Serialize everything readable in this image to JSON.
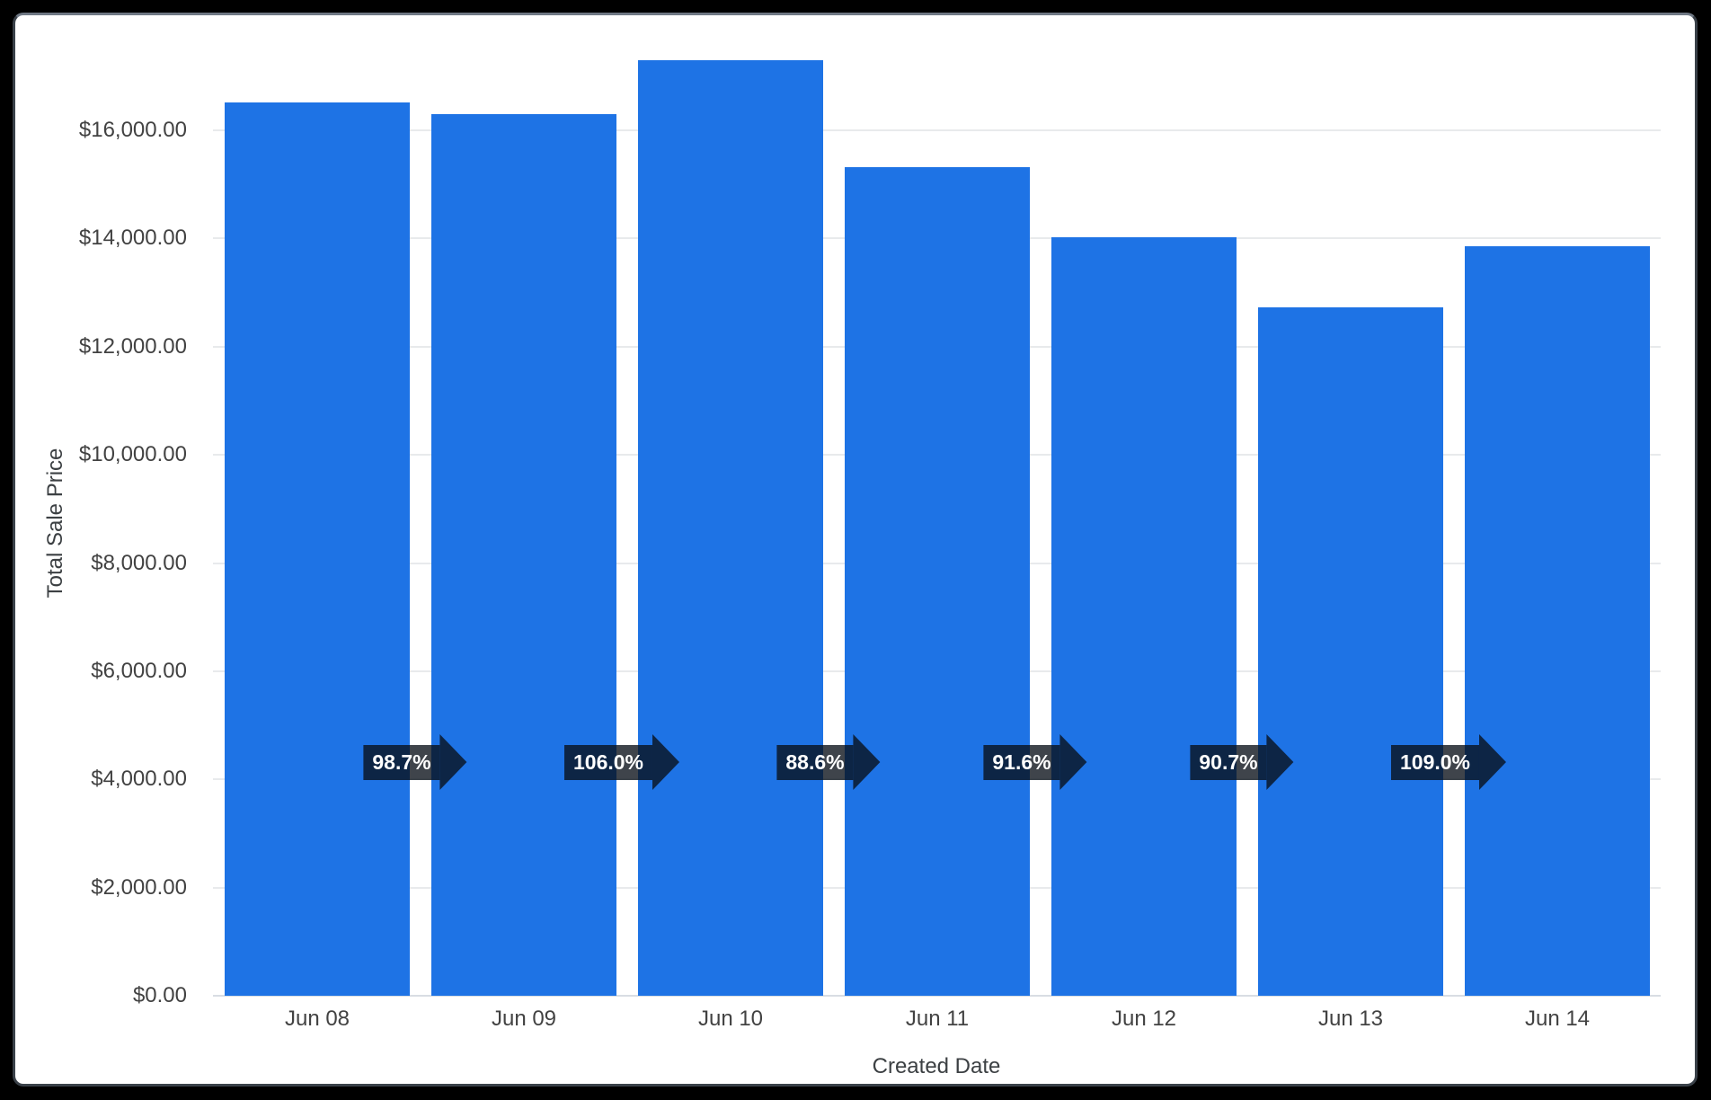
{
  "frame": {
    "background_color": "#000000",
    "panel_color": "#ffffff"
  },
  "chart_data": {
    "type": "bar",
    "title": "",
    "xlabel": "Created Date",
    "ylabel": "Total Sale Price",
    "categories": [
      "Jun 08",
      "Jun 09",
      "Jun 10",
      "Jun 11",
      "Jun 12",
      "Jun 13",
      "Jun 14"
    ],
    "values": [
      16520,
      16300,
      17290,
      15320,
      14030,
      12720,
      13860
    ],
    "ylim": [
      0,
      17400
    ],
    "grid": true,
    "legend_position": "none",
    "bar_color": "#1E73E5",
    "y_ticks": [
      {
        "value": 0,
        "label": "$0.00"
      },
      {
        "value": 2000,
        "label": "$2,000.00"
      },
      {
        "value": 4000,
        "label": "$4,000.00"
      },
      {
        "value": 6000,
        "label": "$6,000.00"
      },
      {
        "value": 8000,
        "label": "$8,000.00"
      },
      {
        "value": 10000,
        "label": "$10,000.00"
      },
      {
        "value": 12000,
        "label": "$12,000.00"
      },
      {
        "value": 14000,
        "label": "$14,000.00"
      },
      {
        "value": 16000,
        "label": "$16,000.00"
      }
    ],
    "change_badges": [
      {
        "label": "98.7%",
        "from": "Jun 08",
        "to": "Jun 09"
      },
      {
        "label": "106.0%",
        "from": "Jun 09",
        "to": "Jun 10"
      },
      {
        "label": "88.6%",
        "from": "Jun 10",
        "to": "Jun 11"
      },
      {
        "label": "91.6%",
        "from": "Jun 11",
        "to": "Jun 12"
      },
      {
        "label": "90.7%",
        "from": "Jun 12",
        "to": "Jun 13"
      },
      {
        "label": "109.0%",
        "from": "Jun 13",
        "to": "Jun 14"
      }
    ],
    "badge_text_color": "#ffffff",
    "axis_text_color": "#424242",
    "gridline_color": "#e8eaec"
  }
}
